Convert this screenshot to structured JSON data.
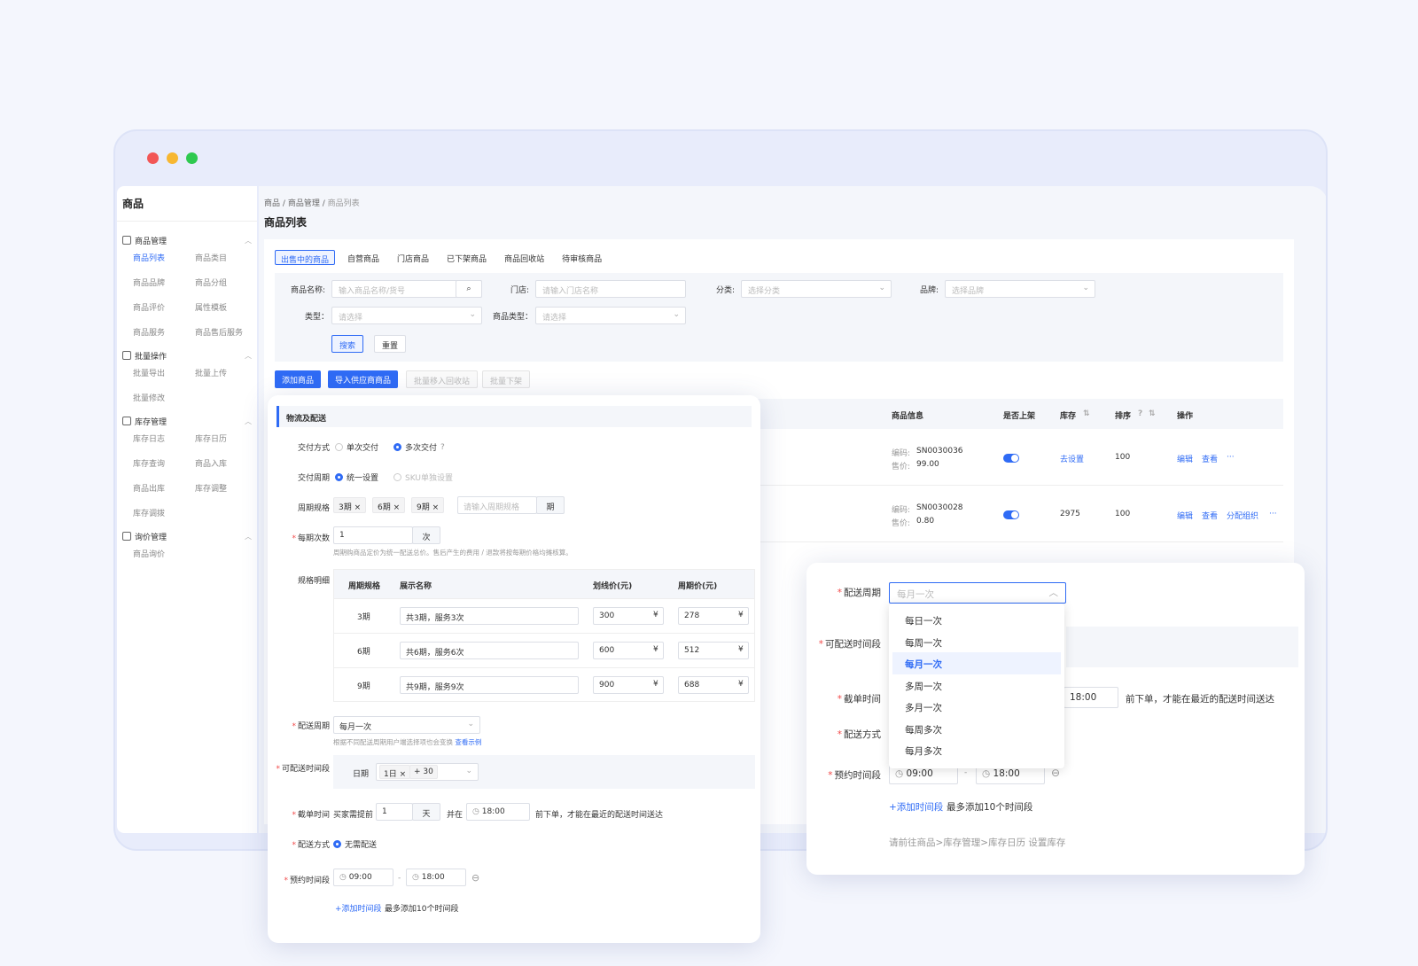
{
  "sidebar": {
    "title": "商品",
    "groups": [
      {
        "label": "商品管理",
        "items": [
          "商品列表",
          "商品类目",
          "商品品牌",
          "商品分组",
          "商品评价",
          "属性模板",
          "商品服务",
          "商品售后服务"
        ]
      },
      {
        "label": "批量操作",
        "items": [
          "批量导出",
          "批量上传",
          "批量修改"
        ]
      },
      {
        "label": "库存管理",
        "items": [
          "库存日志",
          "库存日历",
          "库存查询",
          "商品入库",
          "商品出库",
          "库存调整",
          "库存调拨"
        ]
      },
      {
        "label": "询价管理",
        "items": [
          "商品询价"
        ]
      }
    ]
  },
  "breadcrumb": [
    "商品",
    "/",
    "商品管理",
    "/",
    "商品列表"
  ],
  "page_title": "商品列表",
  "tabs": [
    "出售中的商品",
    "自营商品",
    "门店商品",
    "已下架商品",
    "商品回收站",
    "待审核商品"
  ],
  "filter": {
    "name_label": "商品名称:",
    "name_placeholder": "输入商品名称/货号",
    "store_label": "门店:",
    "store_placeholder": "请输入门店名称",
    "cat_label": "分类:",
    "cat_placeholder": "选择分类",
    "brand_label": "品牌:",
    "brand_placeholder": "选择品牌",
    "type_label": "类型：",
    "type_placeholder": "请选择",
    "ptype_label": "商品类型：",
    "ptype_placeholder": "请选择",
    "search": "搜索",
    "reset": "重置"
  },
  "actions": [
    "添加商品",
    "导入供应商商品",
    "批量移入回收站",
    "批量下架"
  ],
  "table": {
    "headers": [
      "商品信息",
      "是否上架",
      "库存",
      "排序",
      "操作"
    ],
    "rows": [
      {
        "code_label": "编码:",
        "code": "SN0030036",
        "price_label": "售价:",
        "price": "99.00",
        "stock": "去设置",
        "sort": "100",
        "ops": [
          "编辑",
          "查看",
          "···"
        ]
      },
      {
        "code_label": "编码:",
        "code": "SN0030028",
        "price_label": "售价:",
        "price": "0.80",
        "stock": "2975",
        "sort": "100",
        "ops": [
          "编辑",
          "查看",
          "分配组织",
          "···"
        ]
      }
    ]
  },
  "panel": {
    "section": "物流及配送",
    "delivery_label": "交付方式",
    "single": "单次交付",
    "multi": "多次交付",
    "cycle_label": "交付周期",
    "unified": "统一设置",
    "sku": "SKU单独设置",
    "spec_label": "周期规格",
    "tags": [
      "3期",
      "6期",
      "9期"
    ],
    "spec_placeholder": "请输入周期规格",
    "spec_unit": "期",
    "times_label": "每期次数",
    "times_value": "1",
    "times_unit": "次",
    "times_note": "周期购商品定价为统一配送总价。售后产生的费用 / 退款将按每期价格均摊核算。",
    "detail_label": "规格明细",
    "detail_headers": [
      "周期规格",
      "展示名称",
      "划线价(元)",
      "周期价(元)"
    ],
    "detail_rows": [
      {
        "spec": "3期",
        "name": "共3期，服务3次",
        "orig": "300",
        "price": "278"
      },
      {
        "spec": "6期",
        "name": "共6期，服务6次",
        "orig": "600",
        "price": "512"
      },
      {
        "spec": "9期",
        "name": "共9期，服务9次",
        "orig": "900",
        "price": "688"
      }
    ],
    "currency": "¥",
    "period_label": "配送周期",
    "period_value": "每月一次",
    "period_note": "根据不同配送周期用户端选择项也会变换",
    "period_link": "查看示例",
    "slot_label": "可配送时间段",
    "date_label": "日期",
    "date_tags": [
      "1日 ×",
      "+ 30"
    ],
    "cutoff_label": "截单时间",
    "cutoff_pre": "买家需提前",
    "cutoff_value": "1",
    "cutoff_unit": "天",
    "cutoff_and": "并在",
    "cutoff_time": "18:00",
    "cutoff_note": "前下单，才能在最近的配送时间送达",
    "ship_label": "配送方式",
    "ship_value": "无需配送",
    "appt_label": "预约时间段",
    "appt_from": "09:00",
    "appt_to": "18:00",
    "appt_sep": "-",
    "add_slot": "+添加时间段",
    "add_note": "最多添加10个时间段"
  },
  "panel2": {
    "period_label": "配送周期",
    "period_placeholder": "每月一次",
    "options": [
      "每日一次",
      "每周一次",
      "每月一次",
      "多周一次",
      "多月一次",
      "每周多次",
      "每月多次"
    ],
    "selected": "每月一次",
    "slot_label": "可配送时间段",
    "cutoff_label": "截单时间",
    "cutoff_time": "18:00",
    "cutoff_note": "前下单，才能在最近的配送时间送达",
    "ship_label": "配送方式",
    "appt_label": "预约时间段",
    "appt_from": "09:00",
    "appt_to": "18:00",
    "appt_sep": "-",
    "add_slot": "+添加时间段",
    "add_note": "最多添加10个时间段",
    "footer_note": "请前往商品>库存管理>库存日历 设置库存"
  }
}
